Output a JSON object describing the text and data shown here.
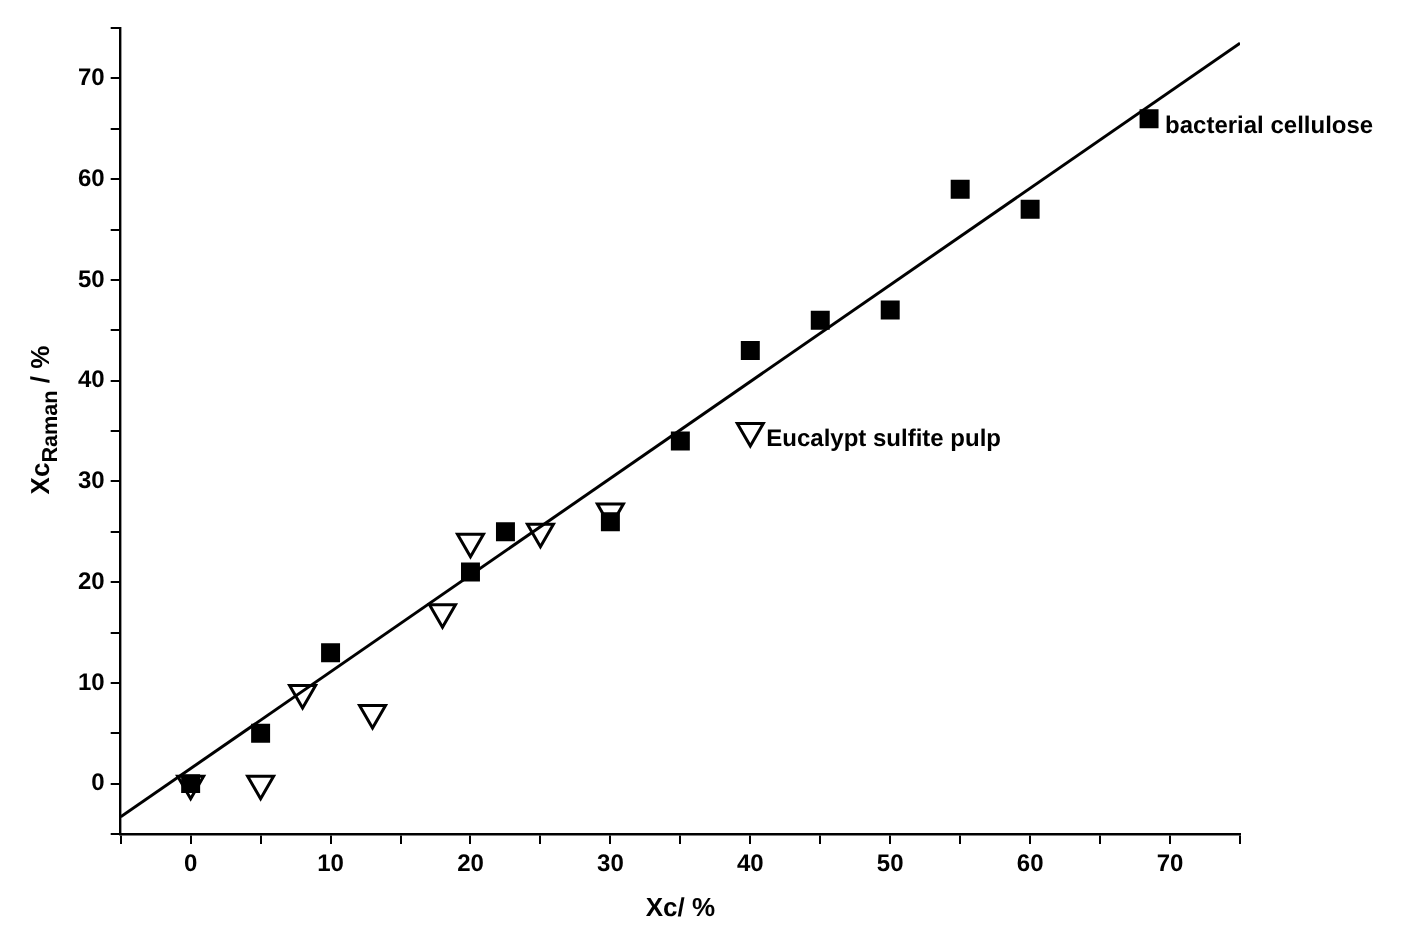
{
  "chart_data": {
    "type": "scatter",
    "xlabel": "Xc/ %",
    "ylabel": "Xc$_{Raman}$ / %",
    "xlim": [
      -5,
      75
    ],
    "ylim": [
      -5,
      75
    ],
    "xticks": [
      {
        "value": -5,
        "label": null
      },
      0,
      {
        "value": 5,
        "label": null
      },
      10,
      {
        "value": 15,
        "label": null
      },
      20,
      {
        "value": 25,
        "label": null
      },
      30,
      {
        "value": 35,
        "label": null
      },
      40,
      {
        "value": 45,
        "label": null
      },
      50,
      {
        "value": 55,
        "label": null
      },
      60,
      {
        "value": 65,
        "label": null
      },
      70,
      {
        "value": 75,
        "label": null
      }
    ],
    "yticks": [
      {
        "value": -5,
        "label": null
      },
      0,
      {
        "value": 5,
        "label": null
      },
      10,
      {
        "value": 15,
        "label": null
      },
      20,
      {
        "value": 25,
        "label": null
      },
      30,
      {
        "value": 35,
        "label": null
      },
      40,
      {
        "value": 45,
        "label": null
      },
      50,
      {
        "value": 55,
        "label": null
      },
      60,
      {
        "value": 65,
        "label": null
      },
      70,
      {
        "value": 75,
        "label": null
      }
    ],
    "grid": false,
    "legend": false,
    "series": [
      {
        "type": "scatter",
        "marker": "triangle",
        "color": "#000000",
        "x": [
          0,
          5,
          8,
          13,
          18,
          20,
          25,
          30,
          40
        ],
        "values": [
          0,
          0,
          9,
          7,
          17,
          24,
          25,
          27,
          35
        ]
      },
      {
        "type": "scatter",
        "marker": "square",
        "color": "#000000",
        "x": [
          0,
          5,
          10,
          20,
          22.5,
          30,
          35,
          40,
          45,
          50,
          55,
          60,
          68.5
        ],
        "values": [
          0,
          5,
          13,
          21,
          25,
          26,
          34,
          43,
          46,
          47,
          59,
          57,
          66
        ]
      },
      {
        "type": "line",
        "marker": "none",
        "line_style": "solid",
        "color": "#000000",
        "x": [
          -5,
          75
        ],
        "values": [
          -3.3,
          73.5
        ]
      }
    ],
    "annotations": [
      {
        "text": "bacterial cellulose",
        "x": 68.5,
        "y": 66
      },
      {
        "text": "Eucalypt sulfite pulp",
        "x": 40,
        "y": 35
      }
    ]
  }
}
